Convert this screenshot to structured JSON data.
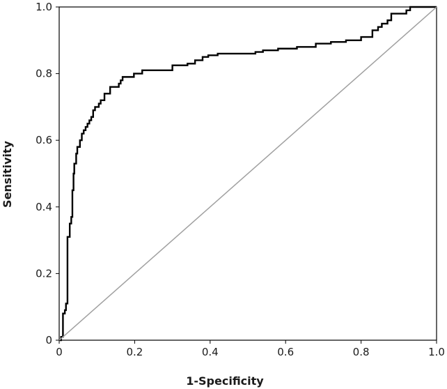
{
  "chart_data": {
    "type": "line",
    "title": "",
    "xlabel": "1-Specificity",
    "ylabel": "Sensitivity",
    "xlim": [
      0,
      1
    ],
    "ylim": [
      0,
      1
    ],
    "xticks": [
      "0",
      "0.2",
      "0.4",
      "0.6",
      "0.8",
      "1.0"
    ],
    "yticks": [
      "0",
      "0.2",
      "0.4",
      "0.6",
      "0.8",
      "1.0"
    ],
    "grid": false,
    "legend": "none",
    "series": [
      {
        "style": "step",
        "color": "#000000",
        "x": [
          0.0,
          0.005,
          0.005,
          0.01,
          0.01,
          0.015,
          0.015,
          0.018,
          0.018,
          0.022,
          0.022,
          0.028,
          0.028,
          0.032,
          0.032,
          0.035,
          0.035,
          0.038,
          0.038,
          0.04,
          0.04,
          0.045,
          0.045,
          0.048,
          0.048,
          0.055,
          0.055,
          0.06,
          0.06,
          0.065,
          0.065,
          0.07,
          0.07,
          0.075,
          0.075,
          0.08,
          0.08,
          0.085,
          0.085,
          0.09,
          0.09,
          0.095,
          0.095,
          0.1,
          0.1,
          0.105,
          0.105,
          0.11,
          0.11,
          0.12,
          0.12,
          0.128,
          0.128,
          0.135,
          0.135,
          0.158,
          0.158,
          0.163,
          0.163,
          0.168,
          0.168,
          0.175,
          0.175,
          0.198,
          0.198,
          0.22,
          0.22,
          0.25,
          0.25,
          0.3,
          0.3,
          0.34,
          0.34,
          0.36,
          0.36,
          0.38,
          0.38,
          0.395,
          0.395,
          0.42,
          0.42,
          0.45,
          0.45,
          0.49,
          0.49,
          0.52,
          0.52,
          0.54,
          0.54,
          0.58,
          0.58,
          0.63,
          0.63,
          0.68,
          0.68,
          0.72,
          0.72,
          0.76,
          0.76,
          0.8,
          0.8,
          0.83,
          0.83,
          0.845,
          0.845,
          0.855,
          0.855,
          0.87,
          0.87,
          0.88,
          0.88,
          0.92,
          0.92,
          0.93,
          0.93,
          0.96,
          0.96,
          1.0
        ],
        "y": [
          0.0,
          0.0,
          0.01,
          0.01,
          0.08,
          0.08,
          0.09,
          0.09,
          0.11,
          0.11,
          0.31,
          0.31,
          0.35,
          0.35,
          0.37,
          0.37,
          0.45,
          0.45,
          0.5,
          0.5,
          0.53,
          0.53,
          0.56,
          0.56,
          0.58,
          0.58,
          0.6,
          0.6,
          0.62,
          0.62,
          0.63,
          0.63,
          0.64,
          0.64,
          0.65,
          0.65,
          0.66,
          0.66,
          0.67,
          0.67,
          0.69,
          0.69,
          0.7,
          0.7,
          0.7,
          0.7,
          0.71,
          0.71,
          0.72,
          0.72,
          0.74,
          0.74,
          0.74,
          0.74,
          0.76,
          0.76,
          0.77,
          0.77,
          0.78,
          0.78,
          0.79,
          0.79,
          0.79,
          0.79,
          0.8,
          0.8,
          0.81,
          0.81,
          0.81,
          0.81,
          0.825,
          0.825,
          0.83,
          0.83,
          0.84,
          0.84,
          0.85,
          0.85,
          0.855,
          0.855,
          0.86,
          0.86,
          0.86,
          0.86,
          0.86,
          0.86,
          0.865,
          0.865,
          0.87,
          0.87,
          0.875,
          0.875,
          0.88,
          0.88,
          0.89,
          0.89,
          0.895,
          0.895,
          0.9,
          0.9,
          0.91,
          0.91,
          0.93,
          0.93,
          0.94,
          0.94,
          0.95,
          0.95,
          0.96,
          0.96,
          0.98,
          0.98,
          0.99,
          0.99,
          1.0,
          1.0,
          1.0,
          1.0
        ]
      },
      {
        "style": "diagonal-reference",
        "color": "#a0a0a0",
        "x": [
          0,
          1
        ],
        "y": [
          0,
          1
        ]
      }
    ]
  }
}
